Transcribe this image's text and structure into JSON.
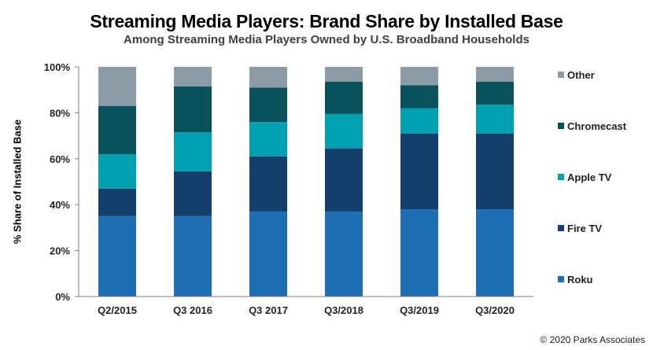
{
  "chart_data": {
    "type": "bar",
    "stacked": true,
    "title": "Streaming Media Players: Brand Share by Installed Base",
    "subtitle": "Among Streaming Media Players Owned by U.S. Broadband Households",
    "xlabel": "",
    "ylabel": "% Share of Installed Base",
    "ylim": [
      0,
      100
    ],
    "yticks": [
      "0%",
      "20%",
      "40%",
      "60%",
      "80%",
      "100%"
    ],
    "grid": false,
    "legend_position": "right",
    "categories": [
      "Q2/2015",
      "Q3 2016",
      "Q3 2017",
      "Q3/2018",
      "Q3/2019",
      "Q3/2020"
    ],
    "series": [
      {
        "name": "Roku",
        "color": "#1f6fb5",
        "values": [
          35,
          35,
          37,
          37,
          38,
          38
        ]
      },
      {
        "name": "Fire TV",
        "color": "#123f6b",
        "values": [
          12,
          19.5,
          24,
          27.5,
          33,
          33
        ]
      },
      {
        "name": "Apple TV",
        "color": "#00a0b0",
        "values": [
          15,
          17,
          15,
          15,
          11,
          12.5
        ]
      },
      {
        "name": "Chromecast",
        "color": "#08505a",
        "values": [
          21,
          20,
          15,
          14,
          10,
          10
        ]
      },
      {
        "name": "Other",
        "color": "#8c9ba6",
        "values": [
          17,
          8.5,
          9,
          6.5,
          8,
          6.5
        ]
      }
    ]
  },
  "legend_order": [
    "Other",
    "Chromecast",
    "Apple TV",
    "Fire TV",
    "Roku"
  ],
  "footer": "© 2020 Parks Associates"
}
